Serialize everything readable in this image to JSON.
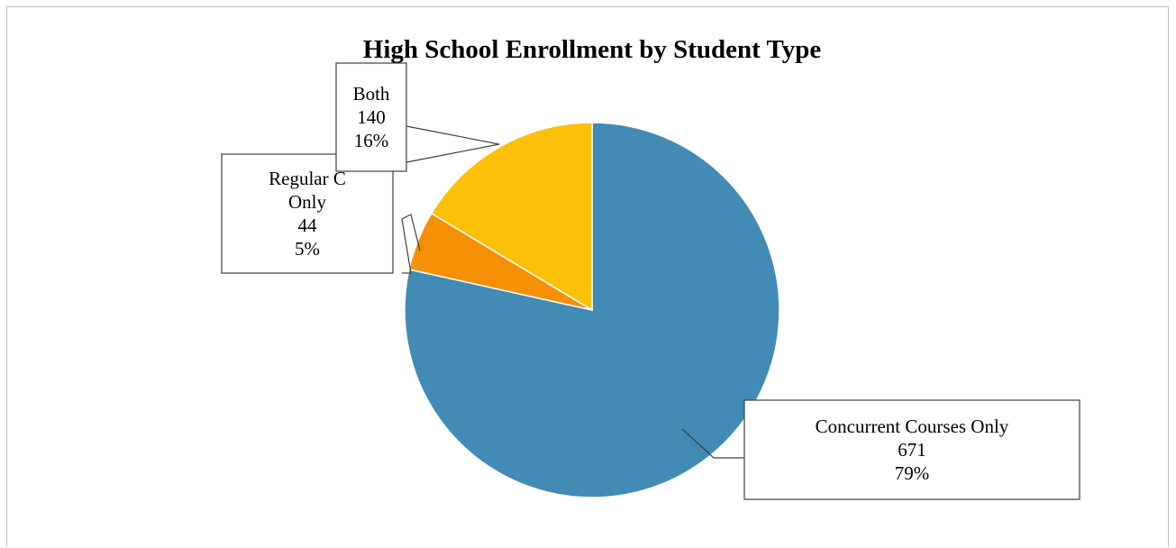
{
  "chart_data": {
    "type": "pie",
    "title": "High School Enrollment by Student Type",
    "start_angle_deg": 0,
    "direction": "clockwise",
    "slices": [
      {
        "label": "Concurrent Courses Only",
        "label_lines": [
          "Concurrent Courses Only"
        ],
        "value": 671,
        "percent": "79%",
        "color": "#428bb5"
      },
      {
        "label": "Regular Courses Only",
        "label_lines": [
          "Regular C",
          "Only"
        ],
        "value": 44,
        "percent": "5%",
        "color": "#f48f06"
      },
      {
        "label": "Both",
        "label_lines": [
          "Both"
        ],
        "value": 140,
        "percent": "16%",
        "color": "#fcc009"
      }
    ],
    "legend": "none"
  }
}
